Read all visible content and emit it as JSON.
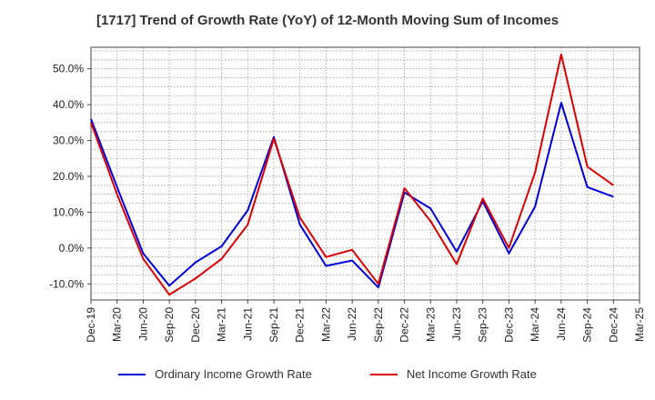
{
  "chart_data": {
    "type": "line",
    "title": "[1717]  Trend of Growth Rate (YoY) of 12-Month Moving Sum of Incomes",
    "xlabel": "",
    "ylabel": "",
    "categories": [
      "Dec-19",
      "Mar-20",
      "Jun-20",
      "Sep-20",
      "Dec-20",
      "Mar-21",
      "Jun-21",
      "Sep-21",
      "Dec-21",
      "Mar-22",
      "Jun-22",
      "Sep-22",
      "Dec-22",
      "Mar-23",
      "Jun-23",
      "Sep-23",
      "Dec-23",
      "Mar-24",
      "Jun-24",
      "Sep-24",
      "Dec-24",
      "Mar-25"
    ],
    "ylim": [
      -14.5,
      56.0
    ],
    "y_ticks": [
      -10,
      0,
      10,
      20,
      30,
      40,
      50
    ],
    "y_tick_labels": [
      "-10.0%",
      "0.0%",
      "10.0%",
      "20.0%",
      "30.0%",
      "40.0%",
      "50.0%"
    ],
    "grid": true,
    "legend_position": "bottom",
    "series": [
      {
        "name": "Ordinary Income Growth Rate",
        "color": "#0000dd",
        "values": [
          36.0,
          17.0,
          -1.5,
          -10.5,
          -4.0,
          0.5,
          10.5,
          31.0,
          6.5,
          -5.0,
          -3.5,
          -11.0,
          15.5,
          11.0,
          -1.0,
          13.0,
          -1.5,
          11.5,
          40.5,
          17.0,
          14.3,
          null
        ]
      },
      {
        "name": "Net Income Growth Rate",
        "color": "#dd0000",
        "values": [
          35.0,
          15.0,
          -3.0,
          -13.0,
          -8.5,
          -3.0,
          6.5,
          30.5,
          8.5,
          -2.5,
          -0.5,
          -10.0,
          16.7,
          7.5,
          -4.5,
          13.8,
          0.0,
          21.0,
          54.0,
          22.7,
          17.5,
          null
        ]
      }
    ]
  }
}
